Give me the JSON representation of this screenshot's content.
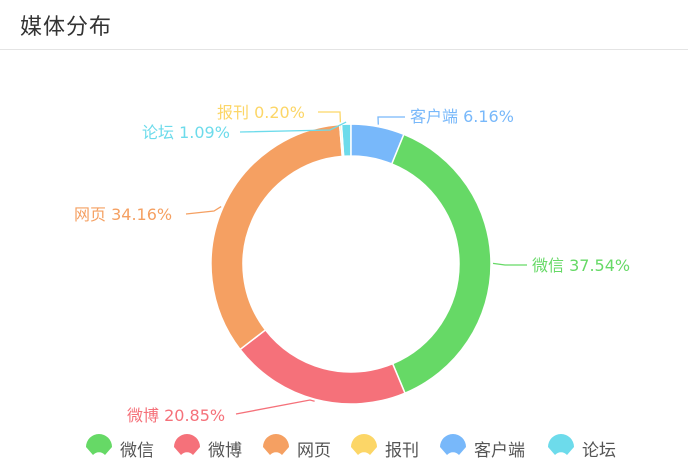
{
  "header": {
    "title": "媒体分布"
  },
  "chart_data": {
    "type": "pie",
    "variant": "donut",
    "legend_position": "bottom",
    "slices": [
      {
        "name": "微信",
        "value": 37.54,
        "label": "微信 37.54%",
        "color": "#66d966"
      },
      {
        "name": "微博",
        "value": 20.85,
        "label": "微博 20.85%",
        "color": "#f5717a"
      },
      {
        "name": "网页",
        "value": 34.16,
        "label": "网页 34.16%",
        "color": "#f5a062"
      },
      {
        "name": "报刊",
        "value": 0.2,
        "label": "报刊 0.20%",
        "color": "#fcd667"
      },
      {
        "name": "客户端",
        "value": 6.16,
        "label": "客户端 6.16%",
        "color": "#78b8fa"
      },
      {
        "name": "论坛",
        "value": 1.09,
        "label": "论坛 1.09%",
        "color": "#6ddbeb"
      }
    ]
  }
}
